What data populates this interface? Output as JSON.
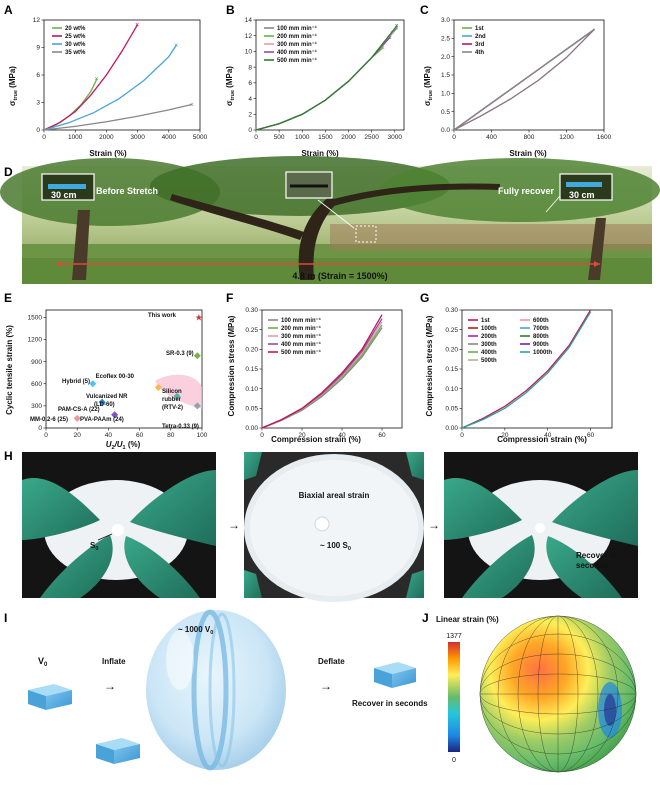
{
  "panels": {
    "A": {
      "label": "A",
      "xlabel": "Strain (%)",
      "ylabel_main": "σ",
      "ylabel_sub": "true",
      "ylabel_unit": " (MPa)",
      "xticks": [
        "0",
        "1000",
        "2000",
        "3000",
        "4000",
        "5000"
      ],
      "yticks": [
        "0",
        "3",
        "6",
        "9",
        "12"
      ],
      "legend": [
        {
          "name": "20 wt%",
          "color": "#6ab04c"
        },
        {
          "name": "25 wt%",
          "color": "#c2185b"
        },
        {
          "name": "30 wt%",
          "color": "#4aa3d8"
        },
        {
          "name": "35 wt%",
          "color": "#888888"
        }
      ]
    },
    "B": {
      "label": "B",
      "xlabel": "Strain (%)",
      "ylabel_main": "σ",
      "ylabel_sub": "true",
      "ylabel_unit": " (MPa)",
      "xticks": [
        "0",
        "500",
        "1000",
        "1500",
        "2000",
        "2500",
        "3000"
      ],
      "yticks": [
        "0",
        "2",
        "4",
        "6",
        "8",
        "10",
        "12",
        "14"
      ],
      "legend": [
        {
          "name": "100 mm min⁻¹",
          "color": "#888888"
        },
        {
          "name": "200 mm min⁻¹",
          "color": "#6ab04c"
        },
        {
          "name": "300 mm min⁻¹",
          "color": "#e89aa5"
        },
        {
          "name": "400 mm min⁻¹",
          "color": "#8b4ea0"
        },
        {
          "name": "500 mm min⁻¹",
          "color": "#2e7d32"
        }
      ]
    },
    "C": {
      "label": "C",
      "xlabel": "Strain (%)",
      "ylabel_main": "σ",
      "ylabel_sub": "true",
      "ylabel_unit": " (MPa)",
      "xticks": [
        "0",
        "400",
        "800",
        "1200",
        "1600"
      ],
      "yticks": [
        "0.0",
        "0.5",
        "1.0",
        "1.5",
        "2.0",
        "2.5",
        "3.0"
      ],
      "legend": [
        {
          "name": "1st",
          "color": "#6ab04c"
        },
        {
          "name": "2nd",
          "color": "#4aa3d8"
        },
        {
          "name": "3rd",
          "color": "#c2185b"
        },
        {
          "name": "4th",
          "color": "#888888"
        }
      ]
    },
    "D": {
      "label": "D",
      "before": "Before Stretch",
      "after": "Fully recover",
      "scale1": "30 cm",
      "scale2": "30 cm",
      "length": "4.8 m (Strain = 1500%)"
    },
    "E": {
      "label": "E",
      "xlabel_main": "U",
      "xlabel_sub1": "2",
      "xlabel_slash": "/U",
      "xlabel_sub2": "1",
      "xlabel_unit": " (%)",
      "ylabel": "Cyclic tensile strain (%)",
      "xticks": [
        "0",
        "20",
        "40",
        "60",
        "80",
        "100"
      ],
      "yticks": [
        "0",
        "300",
        "600",
        "900",
        "1200",
        "1500"
      ],
      "points": [
        {
          "name": "This work",
          "color": "#d32f2f"
        },
        {
          "name": "SR-0.3 (9)",
          "color": "#7cb342"
        },
        {
          "name": "Ecoflex 00-30",
          "color": "#f48fb1"
        },
        {
          "name": "Hybrid (5)",
          "color": "#4fc3f7"
        },
        {
          "name": "Vulcanized NR",
          "color": "#ffb74d"
        },
        {
          "name": "(LD-60)",
          "color": "#ffb74d"
        },
        {
          "name": "Silicon",
          "color": "#4db6ac"
        },
        {
          "name": "rubber",
          "color": "#4db6ac"
        },
        {
          "name": "(RTV-2)",
          "color": "#4db6ac"
        },
        {
          "name": "PAM-CS-A (22)",
          "color": "#1e88e5"
        },
        {
          "name": "PVA-PAAm (24)",
          "color": "#7e57c2"
        },
        {
          "name": "MM-0.2-6 (25)",
          "color": "#ef9a9a"
        },
        {
          "name": "Tetra-0.33 (9)",
          "color": "#90a4ae"
        }
      ]
    },
    "F": {
      "label": "F",
      "xlabel": "Compression strain (%)",
      "ylabel": "Compression stress (MPa)",
      "xticks": [
        "0",
        "20",
        "40",
        "60"
      ],
      "yticks": [
        "0.00",
        "0.05",
        "0.10",
        "0.15",
        "0.20",
        "0.25",
        "0.30"
      ],
      "legend": [
        {
          "name": "100 mm min⁻¹",
          "color": "#888888"
        },
        {
          "name": "200 mm min⁻¹",
          "color": "#6ab04c"
        },
        {
          "name": "300 mm min⁻¹",
          "color": "#e89aa5"
        },
        {
          "name": "400 mm min⁻¹",
          "color": "#8b4ea0"
        },
        {
          "name": "500 mm min⁻¹",
          "color": "#c2185b"
        }
      ]
    },
    "G": {
      "label": "G",
      "xlabel": "Compression strain (%)",
      "ylabel": "Compression stress (MPa)",
      "xticks": [
        "0",
        "20",
        "40",
        "60"
      ],
      "yticks": [
        "0.00",
        "0.05",
        "0.10",
        "0.15",
        "0.20",
        "0.25",
        "0.30"
      ],
      "legend": [
        {
          "name": "1st",
          "color": "#c2185b"
        },
        {
          "name": "100th",
          "color": "#b71c1c"
        },
        {
          "name": "200th",
          "color": "#9c27b0"
        },
        {
          "name": "300th",
          "color": "#888888"
        },
        {
          "name": "400th",
          "color": "#6ab04c"
        },
        {
          "name": "500th",
          "color": "#aeb58f"
        },
        {
          "name": "600th",
          "color": "#f48fb1"
        },
        {
          "name": "700th",
          "color": "#4aa3d8"
        },
        {
          "name": "800th",
          "color": "#2e7d32"
        },
        {
          "name": "900th",
          "color": "#7b1fa2"
        },
        {
          "name": "1000th",
          "color": "#26a69a"
        }
      ]
    },
    "H": {
      "label": "H",
      "s0_main": "S",
      "s0_sub": "0",
      "biaxial": "Biaxial areal strain",
      "approx_main": "~ 100 S",
      "approx_sub": "0",
      "recover1": "Recover in",
      "recover2": "seconds"
    },
    "I": {
      "label": "I",
      "v0_main": "V",
      "v0_sub": "0",
      "inflate": "Inflate",
      "approx_main": "~ 1000 V",
      "approx_sub": "0",
      "deflate": "Deflate",
      "recover": "Recover in seconds"
    },
    "J": {
      "label": "J",
      "title": "Linear strain (%)",
      "max": "1377",
      "min": "0"
    }
  },
  "chart_data": [
    {
      "type": "line",
      "panel": "A",
      "xlabel": "Strain (%)",
      "ylabel": "σtrue (MPa)",
      "xlim": [
        0,
        5000
      ],
      "ylim": [
        0,
        12
      ],
      "series": [
        {
          "name": "20 wt%",
          "x": [
            0,
            400,
            800,
            1200,
            1500,
            1700
          ],
          "y": [
            0,
            0.6,
            1.5,
            2.8,
            4.2,
            5.6
          ]
        },
        {
          "name": "25 wt%",
          "x": [
            0,
            500,
            1000,
            1500,
            2000,
            2500,
            3000
          ],
          "y": [
            0,
            0.8,
            2.0,
            3.8,
            6.0,
            8.6,
            11.5
          ]
        },
        {
          "name": "30 wt%",
          "x": [
            0,
            800,
            1600,
            2400,
            3200,
            4000,
            4250
          ],
          "y": [
            0,
            0.8,
            1.9,
            3.4,
            5.4,
            8.0,
            9.3
          ]
        },
        {
          "name": "35 wt%",
          "x": [
            0,
            1000,
            2000,
            3000,
            4000,
            4750
          ],
          "y": [
            0,
            0.4,
            0.9,
            1.5,
            2.2,
            2.8
          ]
        }
      ]
    },
    {
      "type": "line",
      "panel": "B",
      "xlabel": "Strain (%)",
      "ylabel": "σtrue (MPa)",
      "xlim": [
        0,
        3200
      ],
      "ylim": [
        0,
        14
      ],
      "series": [
        {
          "name": "100 mm min⁻¹",
          "x": [
            0,
            500,
            1000,
            1500,
            2000,
            2500,
            3050
          ],
          "y": [
            0,
            0.8,
            2.0,
            3.8,
            6.2,
            9.2,
            13.0
          ]
        },
        {
          "name": "200 mm min⁻¹",
          "x": [
            0,
            500,
            1000,
            1500,
            2000,
            2500,
            2750
          ],
          "y": [
            0,
            0.8,
            2.0,
            3.8,
            6.2,
            9.2,
            10.5
          ]
        },
        {
          "name": "300 mm min⁻¹",
          "x": [
            0,
            500,
            1000,
            1500,
            2000,
            2500,
            2950
          ],
          "y": [
            0,
            0.8,
            2.0,
            3.8,
            6.2,
            9.2,
            12.5
          ]
        },
        {
          "name": "400 mm min⁻¹",
          "x": [
            0,
            500,
            1000,
            1500,
            2000,
            2500,
            2900
          ],
          "y": [
            0,
            0.8,
            2.0,
            3.8,
            6.2,
            9.2,
            11.8
          ]
        },
        {
          "name": "500 mm min⁻¹",
          "x": [
            0,
            500,
            1000,
            1500,
            2000,
            2500,
            3050
          ],
          "y": [
            0,
            0.8,
            2.0,
            3.8,
            6.2,
            9.2,
            13.3
          ]
        }
      ]
    },
    {
      "type": "line",
      "panel": "C",
      "xlabel": "Strain (%)",
      "ylabel": "σtrue (MPa)",
      "xlim": [
        0,
        1600
      ],
      "ylim": [
        0,
        3.0
      ],
      "series": [
        {
          "name": "1st",
          "x": [
            0,
            300,
            600,
            900,
            1200,
            1500
          ],
          "y": [
            0,
            0.55,
            1.1,
            1.65,
            2.2,
            2.75
          ]
        },
        {
          "name": "2nd",
          "x": [
            0,
            300,
            600,
            900,
            1200,
            1500
          ],
          "y": [
            0,
            0.55,
            1.1,
            1.65,
            2.2,
            2.75
          ]
        },
        {
          "name": "3rd",
          "x": [
            0,
            300,
            600,
            900,
            1200,
            1500
          ],
          "y": [
            0,
            0.55,
            1.1,
            1.65,
            2.2,
            2.75
          ]
        },
        {
          "name": "4th",
          "x": [
            0,
            300,
            600,
            900,
            1200,
            1500
          ],
          "y": [
            0,
            0.55,
            1.1,
            1.65,
            2.2,
            2.75
          ]
        }
      ]
    },
    {
      "type": "scatter",
      "panel": "E",
      "xlabel": "U2/U1 (%)",
      "ylabel": "Cyclic tensile strain (%)",
      "xlim": [
        0,
        100
      ],
      "ylim": [
        0,
        1600
      ],
      "points": [
        {
          "name": "This work",
          "x": 98,
          "y": 1500
        },
        {
          "name": "SR-0.3 (9)",
          "x": 97,
          "y": 980
        },
        {
          "name": "Hybrid (5)",
          "x": 30,
          "y": 600
        },
        {
          "name": "Vulcanized NR (LD-60)",
          "x": 72,
          "y": 550
        },
        {
          "name": "Silicon rubber (RTV-2)",
          "x": 84,
          "y": 430
        },
        {
          "name": "PAM-CS-A (22)",
          "x": 36,
          "y": 350
        },
        {
          "name": "PVA-PAAm (24)",
          "x": 44,
          "y": 180
        },
        {
          "name": "MM-0.2-6 (25)",
          "x": 20,
          "y": 130
        },
        {
          "name": "Tetra-0.33 (9)",
          "x": 97,
          "y": 300
        }
      ]
    },
    {
      "type": "line",
      "panel": "F",
      "xlabel": "Compression strain (%)",
      "ylabel": "Compression stress (MPa)",
      "xlim": [
        0,
        70
      ],
      "ylim": [
        0,
        0.3
      ],
      "series": [
        {
          "name": "100 mm min⁻¹",
          "x": [
            0,
            10,
            20,
            30,
            40,
            50,
            60
          ],
          "y": [
            0,
            0.02,
            0.045,
            0.08,
            0.125,
            0.18,
            0.255
          ]
        },
        {
          "name": "200 mm min⁻¹",
          "x": [
            0,
            10,
            20,
            30,
            40,
            50,
            60
          ],
          "y": [
            0,
            0.02,
            0.047,
            0.083,
            0.13,
            0.185,
            0.262
          ]
        },
        {
          "name": "300 mm min⁻¹",
          "x": [
            0,
            10,
            20,
            30,
            40,
            50,
            60
          ],
          "y": [
            0,
            0.021,
            0.048,
            0.085,
            0.133,
            0.19,
            0.27
          ]
        },
        {
          "name": "400 mm min⁻¹",
          "x": [
            0,
            10,
            20,
            30,
            40,
            50,
            60
          ],
          "y": [
            0,
            0.021,
            0.049,
            0.087,
            0.136,
            0.195,
            0.278
          ]
        },
        {
          "name": "500 mm min⁻¹",
          "x": [
            0,
            10,
            20,
            30,
            40,
            50,
            60
          ],
          "y": [
            0,
            0.022,
            0.05,
            0.09,
            0.14,
            0.2,
            0.288
          ]
        }
      ]
    },
    {
      "type": "line",
      "panel": "G",
      "xlabel": "Compression strain (%)",
      "ylabel": "Compression stress (MPa)",
      "xlim": [
        0,
        70
      ],
      "ylim": [
        0,
        0.3
      ],
      "series": [
        {
          "name": "1st",
          "x": [
            0,
            10,
            20,
            30,
            40,
            50,
            60
          ],
          "y": [
            0,
            0.025,
            0.055,
            0.095,
            0.145,
            0.21,
            0.3
          ]
        },
        {
          "name": "1000th",
          "x": [
            0,
            10,
            20,
            30,
            40,
            50,
            60
          ],
          "y": [
            0,
            0.022,
            0.05,
            0.09,
            0.14,
            0.205,
            0.295
          ]
        }
      ]
    }
  ]
}
